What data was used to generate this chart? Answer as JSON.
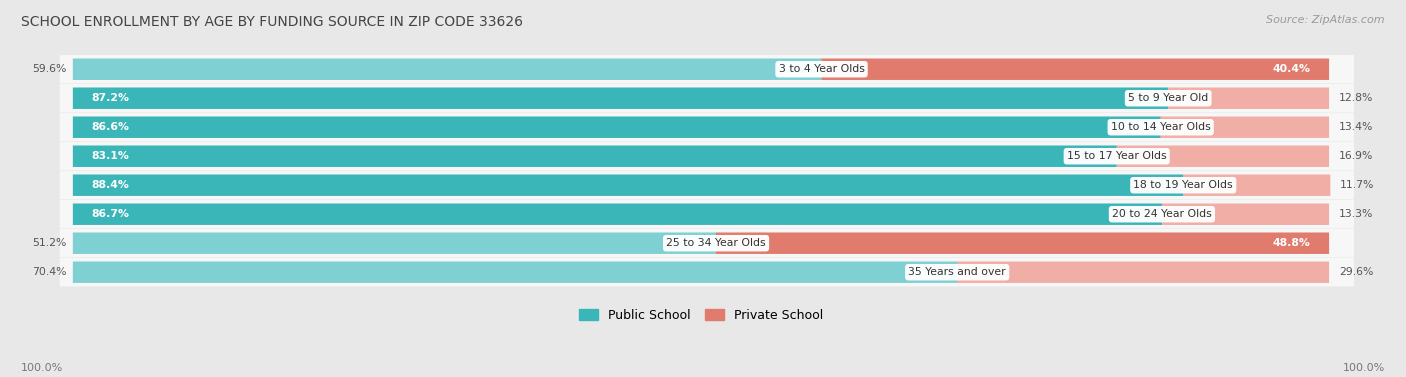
{
  "title": "SCHOOL ENROLLMENT BY AGE BY FUNDING SOURCE IN ZIP CODE 33626",
  "source": "Source: ZipAtlas.com",
  "categories": [
    "3 to 4 Year Olds",
    "5 to 9 Year Old",
    "10 to 14 Year Olds",
    "15 to 17 Year Olds",
    "18 to 19 Year Olds",
    "20 to 24 Year Olds",
    "25 to 34 Year Olds",
    "35 Years and over"
  ],
  "public_values": [
    59.6,
    87.2,
    86.6,
    83.1,
    88.4,
    86.7,
    51.2,
    70.4
  ],
  "private_values": [
    40.4,
    12.8,
    13.4,
    16.9,
    11.7,
    13.3,
    48.8,
    29.6
  ],
  "public_color_dark": "#3ab5b8",
  "public_color_light": "#7fd0d2",
  "private_color_dark": "#e07b6e",
  "private_color_light": "#f0aea6",
  "bg_color": "#e8e8e8",
  "bar_bg_color": "#f7f7f7",
  "legend_public": "Public School",
  "legend_private": "Private School",
  "axis_label_left": "100.0%",
  "axis_label_right": "100.0%",
  "pub_dark_threshold": 75,
  "priv_dark_threshold": 30
}
